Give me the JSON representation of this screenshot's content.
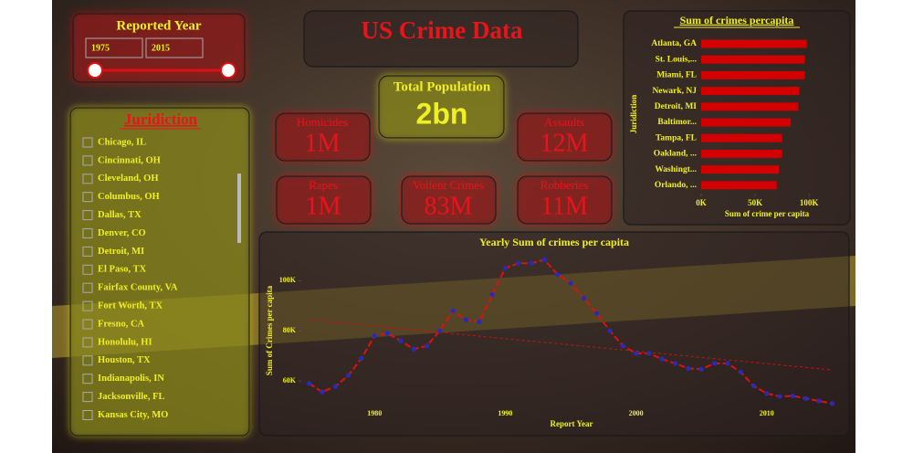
{
  "header": {
    "title": "US Crime Data"
  },
  "slicer": {
    "title": "Reported Year",
    "from": "1975",
    "to": "2015"
  },
  "jurisdiction": {
    "title": "Juridiction",
    "items": [
      "Chicago, IL",
      "Cincinnati, OH",
      "Cleveland, OH",
      "Columbus, OH",
      "Dallas, TX",
      "Denver, CO",
      "Detroit, MI",
      "El Paso, TX",
      "Fairfax County, VA",
      "Fort Worth, TX",
      "Fresno, CA",
      "Honolulu, HI",
      "Houston, TX",
      "Indianapolis, IN",
      "Jacksonville, FL",
      "Kansas City, MO"
    ]
  },
  "cards": {
    "population": {
      "label": "Total Population",
      "value": "2bn"
    },
    "homicides": {
      "label": "Homicides",
      "value": "1M"
    },
    "assaults": {
      "label": "Assaults",
      "value": "12M"
    },
    "rapes": {
      "label": "Rapes",
      "value": "1M"
    },
    "violent": {
      "label": "Voilent Crimes",
      "value": "83M"
    },
    "robberies": {
      "label": "Robberies",
      "value": "11M"
    }
  },
  "chart_data": [
    {
      "type": "hbar",
      "title": "Sum of crimes percapita",
      "y_label": "Juridiction",
      "x_label": "Sum of crime per capita",
      "categories": [
        "Atlanta, GA",
        "St. Louis,...",
        "Miami, FL",
        "Newark, NJ",
        "Detroit, MI",
        "Baltimor...",
        "Tampa, FL",
        "Oakland, ...",
        "Washingt...",
        "Orlando, ..."
      ],
      "values": [
        98000,
        96000,
        96000,
        91000,
        90000,
        83000,
        75000,
        75000,
        72000,
        70000
      ],
      "color": "#d40000",
      "xlim": [
        0,
        110000
      ],
      "xticks": [
        {
          "value": 0,
          "label": "0K"
        },
        {
          "value": 50000,
          "label": "50K"
        },
        {
          "value": 100000,
          "label": "100K"
        }
      ]
    },
    {
      "type": "line",
      "title": "Yearly Sum of crimes per capita",
      "x_label": "Report Year",
      "y_label": "Sum of Crimes per capita",
      "x": [
        1975,
        1976,
        1977,
        1978,
        1979,
        1980,
        1981,
        1982,
        1983,
        1984,
        1985,
        1986,
        1987,
        1988,
        1989,
        1990,
        1991,
        1992,
        1993,
        1994,
        1995,
        1996,
        1997,
        1998,
        1999,
        2000,
        2001,
        2002,
        2003,
        2004,
        2005,
        2006,
        2007,
        2008,
        2009,
        2010,
        2011,
        2012,
        2013,
        2014,
        2015
      ],
      "series": [
        {
          "name": "Sum of Crimes per capita",
          "color": "#e01010",
          "marker_color": "#2a2ab8",
          "values": [
            59000,
            55600,
            57800,
            62200,
            69000,
            78000,
            79000,
            76000,
            72700,
            74000,
            80000,
            88000,
            84400,
            83600,
            94500,
            105000,
            107000,
            107000,
            108400,
            102500,
            99000,
            93000,
            87000,
            80000,
            74000,
            71000,
            71000,
            68700,
            67000,
            65000,
            64700,
            67000,
            67000,
            63600,
            58000,
            55000,
            53800,
            54000,
            53000,
            52000,
            51000
          ]
        }
      ],
      "trendline": {
        "x": [
          1975,
          2015
        ],
        "values": [
          84400,
          64400
        ],
        "color": "#d01010"
      },
      "xlim": [
        1974.4,
        2015.6
      ],
      "ylim": [
        48000,
        110000
      ],
      "xticks": [
        1980,
        1990,
        2000,
        2010
      ],
      "yticks": [
        {
          "value": 60000,
          "label": "60K"
        },
        {
          "value": 80000,
          "label": "80K"
        },
        {
          "value": 100000,
          "label": "100K"
        }
      ]
    }
  ]
}
